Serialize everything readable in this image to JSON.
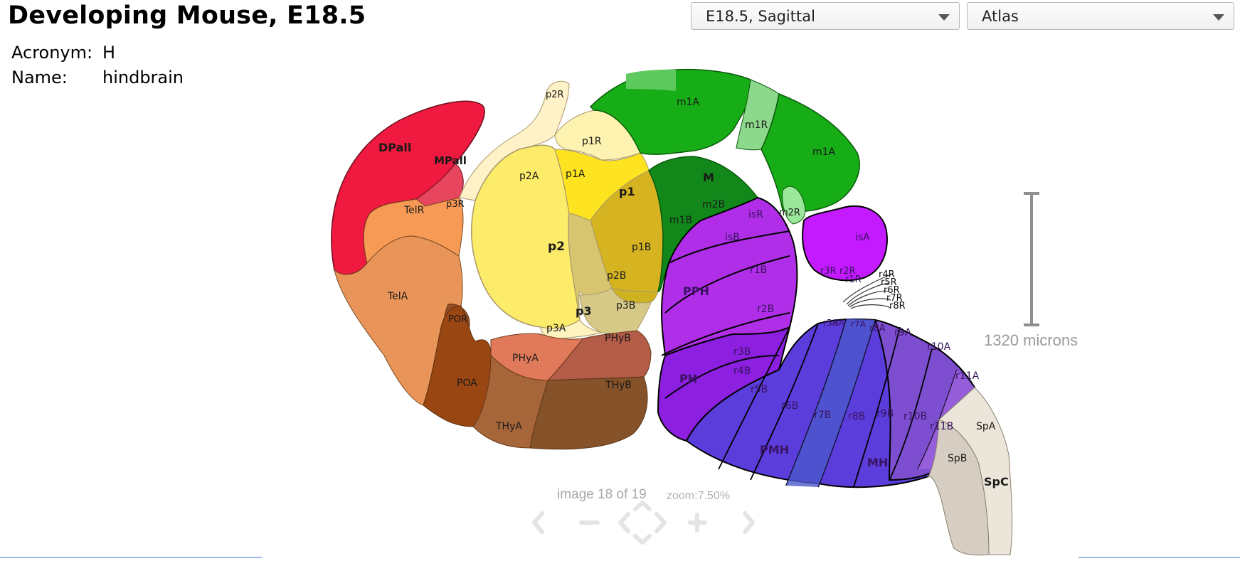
{
  "header": {
    "title": "Developing Mouse, E18.5",
    "acronym_label": "Acronym:",
    "acronym_value": "H",
    "name_label": "Name:",
    "name_value": "hindbrain"
  },
  "controls": {
    "age_plane_select": "E18.5, Sagittal",
    "view_select": "Atlas"
  },
  "scale_bar": {
    "label": "1320 microns"
  },
  "viewer": {
    "image_counter": "image 18 of 19",
    "zoom": "zoom:7.50%"
  },
  "region_labels": {
    "DPall": "DPall",
    "MPall": "MPall",
    "TelR": "TelR",
    "TelA": "TelA",
    "POR": "POR",
    "POA": "POA",
    "p3R": "p3R",
    "p2R": "p2R",
    "p1R": "p1R",
    "p1A": "p1A",
    "p2A": "p2A",
    "p1": "p1",
    "p1B": "p1B",
    "p2": "p2",
    "p2B": "p2B",
    "p3B": "p3B",
    "p3": "p3",
    "p3A": "p3A",
    "PHyA": "PHyA",
    "PHyB": "PHyB",
    "THyA": "THyA",
    "THyB": "THyB",
    "m1A_1": "m1A",
    "m1R": "m1R",
    "m1A_2": "m1A",
    "M": "M",
    "m2B": "m2B",
    "m1B": "m1B",
    "m2R": "m2R",
    "isR": "isR",
    "isB": "isB",
    "isA": "isA",
    "r1B": "r1B",
    "r2B": "r2B",
    "PPH": "PPH",
    "r3B": "r3B",
    "r4B": "r4B",
    "PH": "PH",
    "r5B": "r5B",
    "r6B": "r6B",
    "r7B": "r7B",
    "r8B": "r8B",
    "r9B": "r9B",
    "r10B": "r10B",
    "r11B": "r11B",
    "PMH": "PMH",
    "MH": "MH",
    "r3R": "r3R",
    "r2R": "r2R",
    "r1R": "r1R",
    "r4R": "r4R",
    "r5R": "r5R",
    "r6R": "r6R",
    "r7R": "r7R",
    "r8R": "r8R",
    "r5A": "r5A",
    "r6A": "r6A",
    "r7A": "r7A",
    "r8A": "r8A",
    "r9A": "r9A",
    "r10A": "r10A",
    "r11A": "r11A",
    "SpA": "SpA",
    "SpB": "SpB",
    "SpC": "SpC"
  },
  "colors": {
    "telencephalon_red": "#f0193f",
    "telencephalon_orange": "#e8985a",
    "diencephalon_yellow": "#fde96a",
    "hypothalamus_brown": "#8c5530",
    "midbrain_green": "#13a913",
    "hindbrain_purple": "#8a2be2",
    "spinal_cord_beige": "#e4ddd0"
  },
  "icons": [
    "chevron-left-icon",
    "zoom-out-icon",
    "pan-icon",
    "zoom-in-icon",
    "chevron-right-icon",
    "dropdown-arrow-icon"
  ]
}
